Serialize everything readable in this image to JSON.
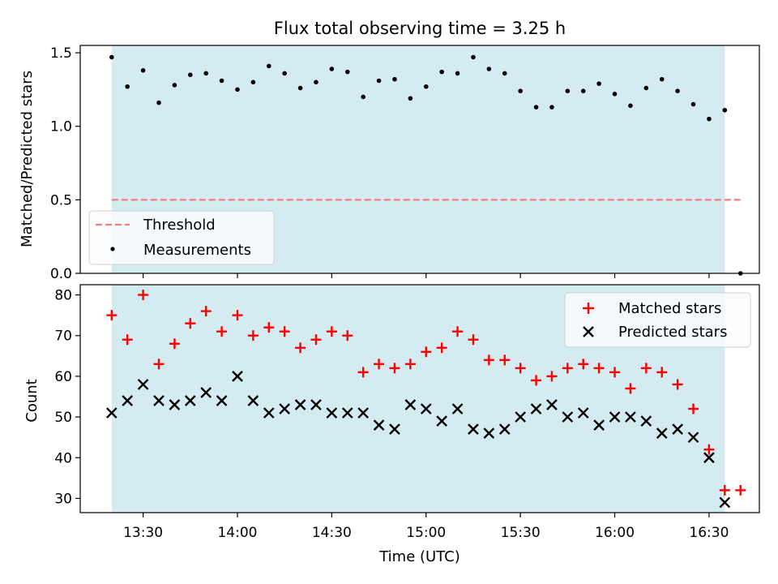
{
  "figure": {
    "title": "Flux total observing time = 3.25 h",
    "xlabel": "Time (UTC)",
    "x_ticks": [
      "13:30",
      "14:00",
      "14:30",
      "15:00",
      "15:30",
      "16:00",
      "16:30"
    ]
  },
  "colors": {
    "observing_span": "#d4ebf1",
    "threshold": "#f08080",
    "matched": "#ff0000",
    "predicted": "#000000",
    "measurements": "#000000"
  },
  "chart_data": [
    {
      "type": "scatter",
      "ylabel": "Matched/Predicted stars",
      "ylim": [
        0,
        1.55
      ],
      "y_ticks": [
        "0.0",
        "0.5",
        "1.0",
        "1.5"
      ],
      "shaded_span": [
        "13:20",
        "16:35"
      ],
      "threshold": 0.5,
      "threshold_span": [
        "13:20",
        "16:40"
      ],
      "legend_position": "lower-left",
      "legend": [
        "Threshold",
        "Measurements"
      ],
      "series": [
        {
          "name": "Measurements",
          "x": [
            "13:20",
            "13:25",
            "13:30",
            "13:35",
            "13:40",
            "13:45",
            "13:50",
            "13:55",
            "14:00",
            "14:05",
            "14:10",
            "14:15",
            "14:20",
            "14:25",
            "14:30",
            "14:35",
            "14:40",
            "14:45",
            "14:50",
            "14:55",
            "15:00",
            "15:05",
            "15:10",
            "15:15",
            "15:20",
            "15:25",
            "15:30",
            "15:35",
            "15:40",
            "15:45",
            "15:50",
            "15:55",
            "16:00",
            "16:05",
            "16:10",
            "16:15",
            "16:20",
            "16:25",
            "16:30",
            "16:35",
            "16:40"
          ],
          "values": [
            1.47,
            1.27,
            1.38,
            1.16,
            1.28,
            1.35,
            1.36,
            1.31,
            1.25,
            1.3,
            1.41,
            1.36,
            1.26,
            1.3,
            1.39,
            1.37,
            1.2,
            1.31,
            1.32,
            1.19,
            1.27,
            1.37,
            1.36,
            1.47,
            1.39,
            1.36,
            1.24,
            1.13,
            1.13,
            1.24,
            1.24,
            1.29,
            1.22,
            1.14,
            1.26,
            1.32,
            1.24,
            1.15,
            1.05,
            1.11,
            0.0
          ]
        }
      ]
    },
    {
      "type": "scatter",
      "ylabel": "Count",
      "ylim": [
        26.5,
        82.5
      ],
      "y_ticks": [
        "30",
        "40",
        "50",
        "60",
        "70",
        "80"
      ],
      "shaded_span": [
        "13:20",
        "16:35"
      ],
      "legend_position": "upper-right",
      "legend": [
        "Matched stars",
        "Predicted stars"
      ],
      "series": [
        {
          "name": "Matched stars",
          "marker": "plus",
          "x": [
            "13:20",
            "13:25",
            "13:30",
            "13:35",
            "13:40",
            "13:45",
            "13:50",
            "13:55",
            "14:00",
            "14:05",
            "14:10",
            "14:15",
            "14:20",
            "14:25",
            "14:30",
            "14:35",
            "14:40",
            "14:45",
            "14:50",
            "14:55",
            "15:00",
            "15:05",
            "15:10",
            "15:15",
            "15:20",
            "15:25",
            "15:30",
            "15:35",
            "15:40",
            "15:45",
            "15:50",
            "15:55",
            "16:00",
            "16:05",
            "16:10",
            "16:15",
            "16:20",
            "16:25",
            "16:30",
            "16:35",
            "16:40"
          ],
          "values": [
            75,
            69,
            80,
            63,
            68,
            73,
            76,
            71,
            75,
            70,
            72,
            71,
            67,
            69,
            71,
            70,
            61,
            63,
            62,
            63,
            66,
            67,
            71,
            69,
            64,
            64,
            62,
            59,
            60,
            62,
            63,
            62,
            61,
            57,
            62,
            61,
            58,
            52,
            42,
            32,
            32
          ]
        },
        {
          "name": "Predicted stars",
          "marker": "x",
          "x": [
            "13:20",
            "13:25",
            "13:30",
            "13:35",
            "13:40",
            "13:45",
            "13:50",
            "13:55",
            "14:00",
            "14:05",
            "14:10",
            "14:15",
            "14:20",
            "14:25",
            "14:30",
            "14:35",
            "14:40",
            "14:45",
            "14:50",
            "14:55",
            "15:00",
            "15:05",
            "15:10",
            "15:15",
            "15:20",
            "15:25",
            "15:30",
            "15:35",
            "15:40",
            "15:45",
            "15:50",
            "15:55",
            "16:00",
            "16:05",
            "16:10",
            "16:15",
            "16:20",
            "16:25",
            "16:30",
            "16:35"
          ],
          "values": [
            51,
            54,
            58,
            54,
            53,
            54,
            56,
            54,
            60,
            54,
            51,
            52,
            53,
            53,
            51,
            51,
            51,
            48,
            47,
            53,
            52,
            49,
            52,
            47,
            46,
            47,
            50,
            52,
            53,
            50,
            51,
            48,
            50,
            50,
            49,
            46,
            47,
            45,
            40,
            29
          ]
        }
      ]
    }
  ]
}
